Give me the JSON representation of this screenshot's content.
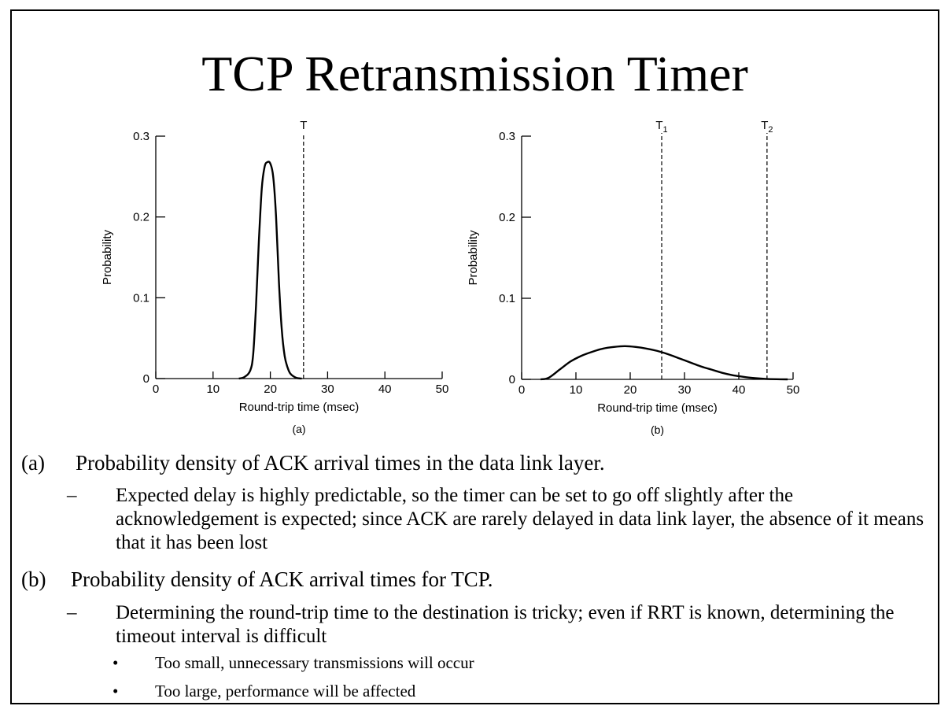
{
  "slide": {
    "title": "TCP Retransmission Timer"
  },
  "chart_data": [
    {
      "type": "line",
      "panel_label": "(a)",
      "xlabel": "Round-trip time (msec)",
      "ylabel": "Probability",
      "xlim": [
        0,
        50
      ],
      "ylim": [
        0,
        0.3
      ],
      "x_ticks": [
        "0",
        "10",
        "20",
        "30",
        "40",
        "50"
      ],
      "y_ticks": [
        "0",
        "0.1",
        "0.2",
        "0.3"
      ],
      "x_tick_values": [
        0,
        10,
        20,
        30,
        40,
        50
      ],
      "y_tick_values": [
        0,
        0.1,
        0.2,
        0.3
      ],
      "grid": false,
      "series": [
        {
          "x": [
            14.5,
            15.5,
            16.5,
            17.0,
            17.5,
            18.0,
            18.5,
            19.0,
            19.5,
            20.0,
            20.5,
            21.0,
            21.5,
            22.0,
            22.5,
            23.0,
            23.5,
            24.5,
            25.5
          ],
          "y": [
            0,
            0.002,
            0.01,
            0.03,
            0.09,
            0.17,
            0.235,
            0.262,
            0.268,
            0.266,
            0.25,
            0.2,
            0.12,
            0.06,
            0.028,
            0.014,
            0.006,
            0.001,
            0
          ]
        }
      ],
      "vlines": [
        {
          "x": 25.8,
          "label": "T",
          "sub": ""
        }
      ]
    },
    {
      "type": "line",
      "panel_label": "(b)",
      "xlabel": "Round-trip time (msec)",
      "ylabel": "Probability",
      "xlim": [
        0,
        50
      ],
      "ylim": [
        0,
        0.3
      ],
      "x_ticks": [
        "0",
        "10",
        "20",
        "30",
        "40",
        "50"
      ],
      "y_ticks": [
        "0",
        "0.1",
        "0.2",
        "0.3"
      ],
      "x_tick_values": [
        0,
        10,
        20,
        30,
        40,
        50
      ],
      "y_tick_values": [
        0,
        0.1,
        0.2,
        0.3
      ],
      "grid": false,
      "series": [
        {
          "x": [
            3.5,
            5,
            7,
            9,
            11,
            13,
            15,
            17,
            19,
            21,
            23,
            25,
            27,
            29,
            31,
            33,
            35,
            37,
            39,
            41,
            43,
            45,
            47,
            49
          ],
          "y": [
            0,
            0.002,
            0.012,
            0.022,
            0.029,
            0.034,
            0.038,
            0.04,
            0.041,
            0.04,
            0.038,
            0.035,
            0.031,
            0.026,
            0.021,
            0.016,
            0.012,
            0.008,
            0.005,
            0.003,
            0.0015,
            0.0006,
            0.0002,
            0
          ]
        }
      ],
      "vlines": [
        {
          "x": 25.8,
          "label": "T",
          "sub": "1"
        },
        {
          "x": 45.2,
          "label": "T",
          "sub": "2"
        }
      ]
    }
  ],
  "bullets": {
    "a": {
      "label": "(a)",
      "text": "Probability density of ACK arrival times in the data link layer.",
      "dash": "–",
      "sub": "Expected delay is highly predictable, so the timer can be set to go off slightly after the acknowledgement is expected; since ACK are rarely delayed in data link layer, the absence of it means that it has been lost"
    },
    "b": {
      "label": "(b)",
      "text": "Probability density of  ACK arrival times for TCP.",
      "dash": "–",
      "sub": "Determining the round-trip time to the destination is tricky; even if RRT is known, determining the timeout interval is difficult",
      "bullet": "•",
      "items": [
        "Too small, unnecessary transmissions will occur",
        "Too large, performance will be affected"
      ]
    }
  }
}
